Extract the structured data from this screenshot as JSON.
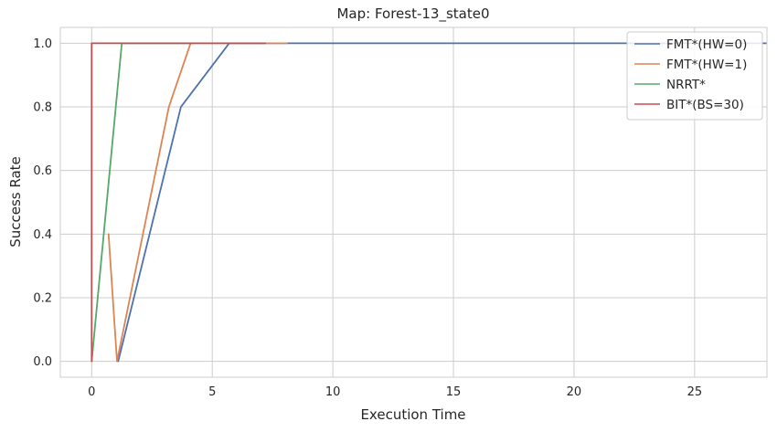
{
  "chart_data": {
    "type": "line",
    "title": "Map: Forest-13_state0",
    "xlabel": "Execution Time",
    "ylabel": "Success Rate",
    "xlim": [
      -1.3,
      28
    ],
    "ylim": [
      -0.05,
      1.05
    ],
    "xticks": [
      0,
      5,
      10,
      15,
      20,
      25
    ],
    "yticks": [
      0.0,
      0.2,
      0.4,
      0.6,
      0.8,
      1.0
    ],
    "xtick_labels": [
      "0",
      "5",
      "10",
      "15",
      "20",
      "25"
    ],
    "ytick_labels": [
      "0.0",
      "0.2",
      "0.4",
      "0.6",
      "0.8",
      "1.0"
    ],
    "grid": true,
    "legend_position": "top-right",
    "series": [
      {
        "name": "FMT*(HW=0)",
        "color": "#4c72b0",
        "x": [
          1.1,
          3.7,
          5.7,
          28
        ],
        "y": [
          0.0,
          0.8,
          1.0,
          1.0
        ]
      },
      {
        "name": "FMT*(HW=1)",
        "color": "#dd8452",
        "x": [
          0.7,
          1.05,
          3.2,
          4.1,
          8.1
        ],
        "y": [
          0.4,
          0.0,
          0.8,
          1.0,
          1.0
        ]
      },
      {
        "name": "NRRT*",
        "color": "#55a868",
        "x": [
          0.0,
          1.25,
          4.2
        ],
        "y": [
          0.0,
          1.0,
          1.0
        ]
      },
      {
        "name": "BIT*(BS=30)",
        "color": "#c44e52",
        "x": [
          0.0,
          0.0,
          7.2
        ],
        "y": [
          0.0,
          1.0,
          1.0
        ]
      }
    ]
  }
}
